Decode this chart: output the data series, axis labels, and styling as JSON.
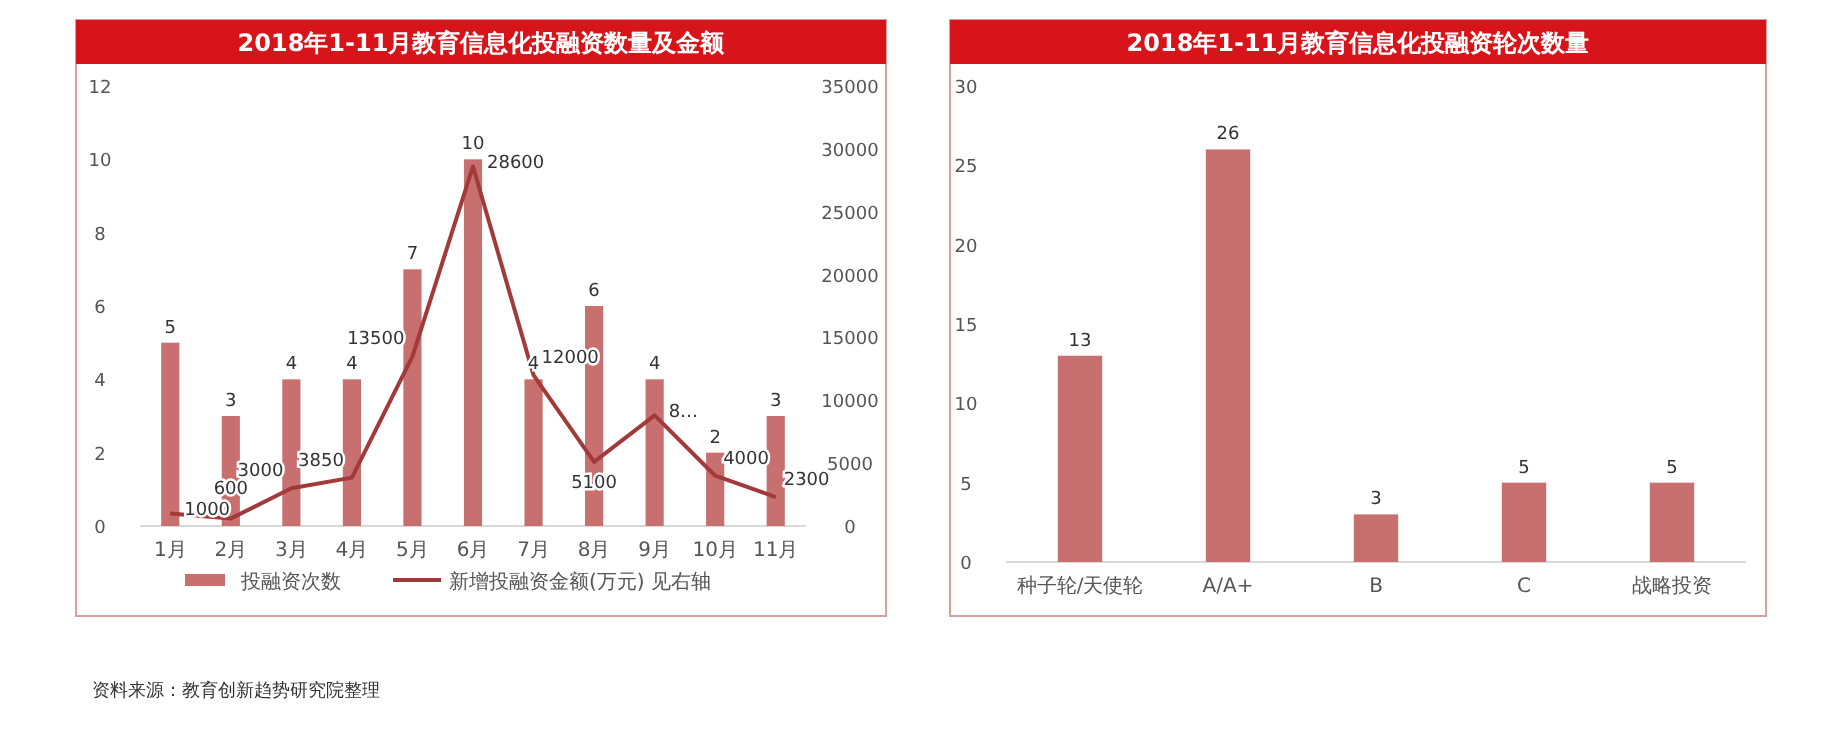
{
  "chart_data": [
    {
      "type": "bar",
      "title": "2018年1-11月教育信息化投融资数量及金额",
      "categories": [
        "1月",
        "2月",
        "3月",
        "4月",
        "5月",
        "6月",
        "7月",
        "8月",
        "9月",
        "10月",
        "11月"
      ],
      "series": [
        {
          "name": "投融资次数",
          "color": "#c87070",
          "values": [
            5,
            3,
            4,
            4,
            7,
            10,
            4,
            6,
            4,
            2,
            3
          ],
          "value_labels": [
            "5",
            "3",
            "4",
            "4",
            "7",
            "10",
            "4",
            "6",
            "4",
            "2",
            "3"
          ]
        },
        {
          "name": "新增投融资金额(万元) 见右轴",
          "type": "line",
          "axis": "y2",
          "color": "#a33a3a",
          "values": [
            1000,
            600,
            3000,
            3850,
            13500,
            28600,
            12000,
            5100,
            8800,
            4000,
            2300
          ],
          "value_labels": [
            "1000",
            "600",
            "3000",
            "3850",
            "13500",
            "28600",
            "12000",
            "5100",
            "8…",
            "4000",
            "2300"
          ]
        }
      ],
      "ylim": [
        0,
        12
      ],
      "yticks": [
        0,
        2,
        4,
        6,
        8,
        10,
        12
      ],
      "y2lim": [
        0,
        35000
      ],
      "y2ticks": [
        0,
        5000,
        10000,
        15000,
        20000,
        25000,
        30000,
        35000
      ],
      "grid": false,
      "legend": "bottom",
      "marker": "none",
      "line_style": "solid",
      "annotations": [
        "资料来源：教育创新趋势研究院整理"
      ]
    },
    {
      "type": "bar",
      "title": "2018年1-11月教育信息化投融资轮次数量",
      "categories": [
        "种子轮/天使轮",
        "A/A+",
        "B",
        "C",
        "战略投资"
      ],
      "series": [
        {
          "color": "#c87070",
          "values": [
            13,
            26,
            3,
            5,
            5
          ]
        }
      ],
      "ylim": [
        0,
        30
      ],
      "yticks": [
        0,
        5,
        10,
        15,
        20,
        25,
        30
      ],
      "grid": false,
      "legend": false,
      "data_labels": true
    }
  ]
}
